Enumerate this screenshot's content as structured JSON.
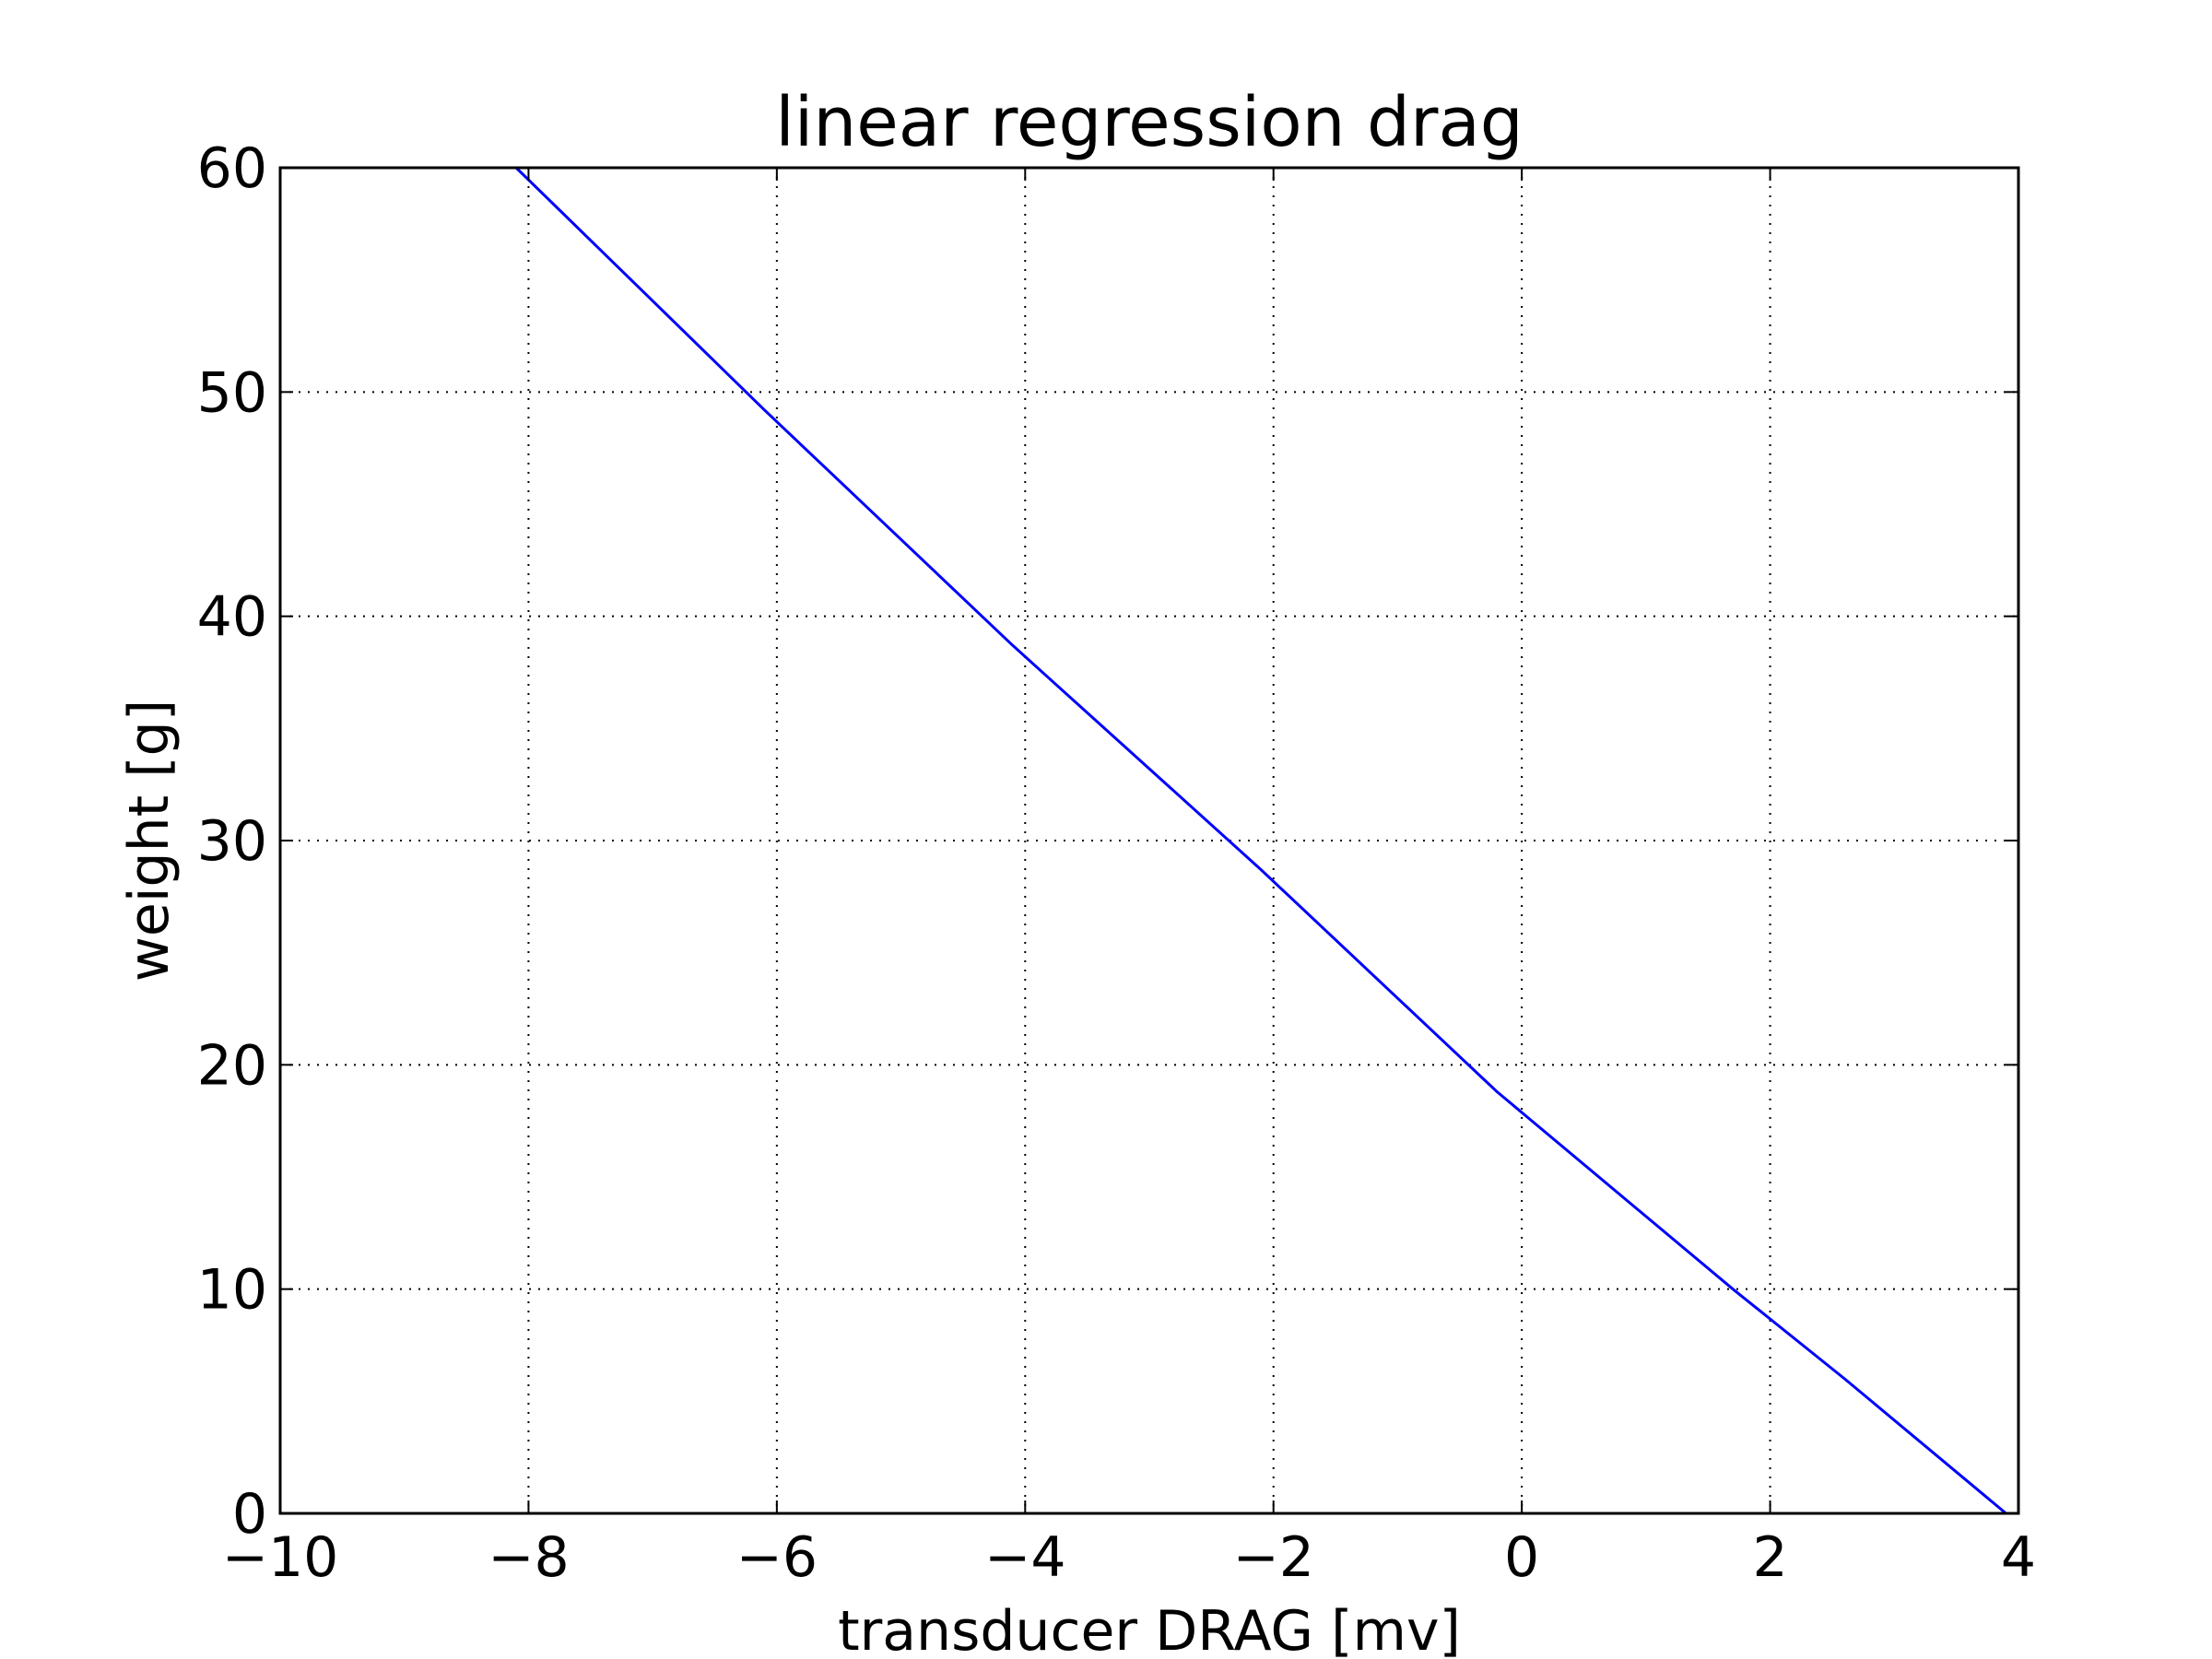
{
  "chart_data": {
    "type": "line",
    "title": "linear regression drag",
    "xlabel": "transducer DRAG [mv]",
    "ylabel": "weight [g]",
    "xlim": [
      -10,
      4
    ],
    "ylim": [
      0,
      60
    ],
    "xticks": [
      -10,
      -8,
      -6,
      -4,
      -2,
      0,
      2,
      4
    ],
    "yticks": [
      0,
      10,
      20,
      30,
      40,
      50,
      60
    ],
    "xtick_labels": [
      "−10",
      "−8",
      "−6",
      "−4",
      "−2",
      "0",
      "2",
      "4"
    ],
    "ytick_labels": [
      "0",
      "10",
      "20",
      "30",
      "40",
      "50",
      "60"
    ],
    "grid": true,
    "grid_style": "dotted",
    "series": [
      {
        "color": "#0000ff",
        "x": [
          -8.1,
          -6.1,
          -4.1,
          -2.1,
          -0.2,
          1.7,
          2.6,
          3.9
        ],
        "y": [
          60,
          49.2,
          38.7,
          28.7,
          18.8,
          10.0,
          6.0,
          0.0
        ]
      }
    ]
  }
}
